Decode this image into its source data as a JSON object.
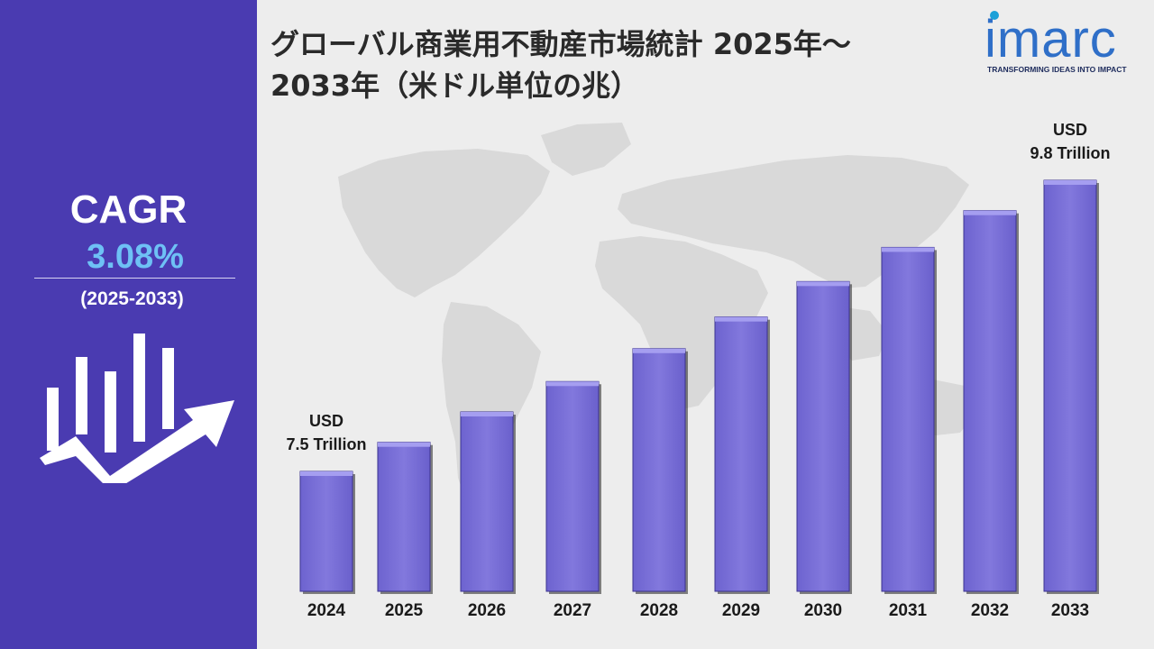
{
  "title": "グローバル商業用不動産市場統計 2025年～2033年（米ドル単位の兆）",
  "title_line1": "グローバル商業用不動産市場統計 2025年～",
  "title_line2": "2033年（米ドル単位の兆）",
  "logo": {
    "word": "imarc",
    "tagline": "TRANSFORMING IDEAS INTO IMPACT"
  },
  "sidebar": {
    "cagr_label": "CAGR",
    "cagr_value": "3.08%",
    "period": "(2025-2033)",
    "icon": "growth-chart-icon"
  },
  "colors": {
    "sidebar": "#4a3bb1",
    "bar": "#7b71d9",
    "cagr_value": "#6ec1f5",
    "logo": "#2f6fc8"
  },
  "chart_data": {
    "type": "bar",
    "categories": [
      "2024",
      "2025",
      "2026",
      "2027",
      "2028",
      "2029",
      "2030",
      "2031",
      "2032",
      "2033"
    ],
    "values": [
      7.5,
      7.73,
      7.97,
      8.21,
      8.47,
      8.72,
      9.0,
      9.27,
      9.56,
      9.8
    ],
    "unit": "USD Trillion",
    "annotations": [
      {
        "category": "2024",
        "line1": "USD",
        "line2": "7.5 Trillion"
      },
      {
        "category": "2033",
        "line1": "USD",
        "line2": "9.8 Trillion"
      }
    ],
    "grid": false,
    "background": "world-map"
  }
}
